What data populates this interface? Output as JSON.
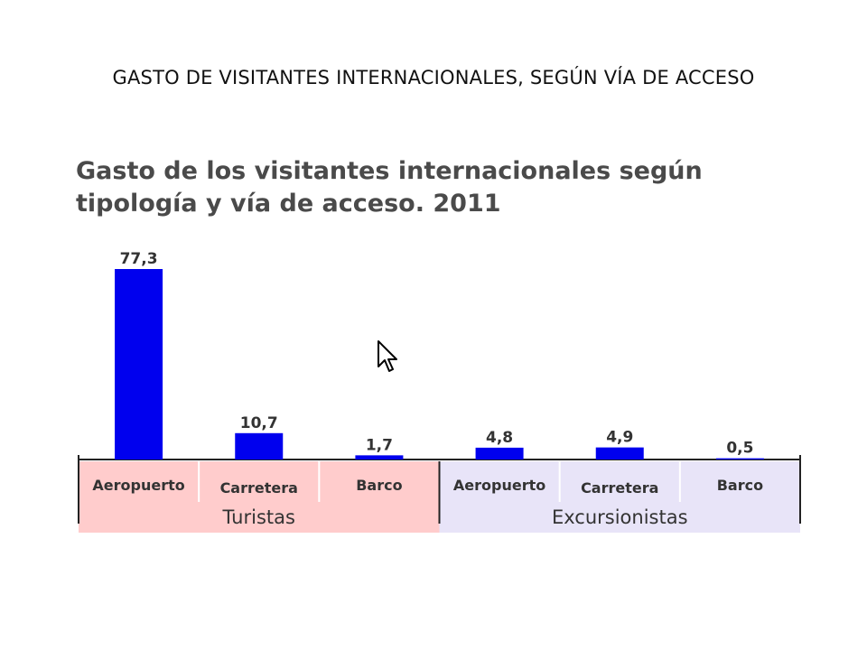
{
  "slide_title": "GASTO DE VISITANTES INTERNACIONALES, SEGÚN VÍA DE ACCESO",
  "chart_data": {
    "type": "bar",
    "title_lines": [
      "Gasto de los visitantes internacionales según",
      "tipología y vía de acceso. 2011"
    ],
    "categories": [
      "Aeropuerto",
      "Carretera",
      "Barco",
      "Aeropuerto",
      "Carretera",
      "Barco"
    ],
    "values": [
      77.3,
      10.7,
      1.7,
      4.8,
      4.9,
      0.5
    ],
    "value_labels": [
      "77,3",
      "10,7",
      "1,7",
      "4,8",
      "4,9",
      "0,5"
    ],
    "groups": [
      {
        "name": "Turistas",
        "categories": [
          "Aeropuerto",
          "Carretera",
          "Barco"
        ],
        "color": "#ffcccc"
      },
      {
        "name": "Excursionistas",
        "categories": [
          "Aeropuerto",
          "Carretera",
          "Barco"
        ],
        "color": "#e8e4f8"
      }
    ],
    "bar_color": "#0000ee",
    "xlabel": "",
    "ylabel": "",
    "ylim": [
      0,
      77.3
    ],
    "grid": false,
    "legend": "none"
  }
}
